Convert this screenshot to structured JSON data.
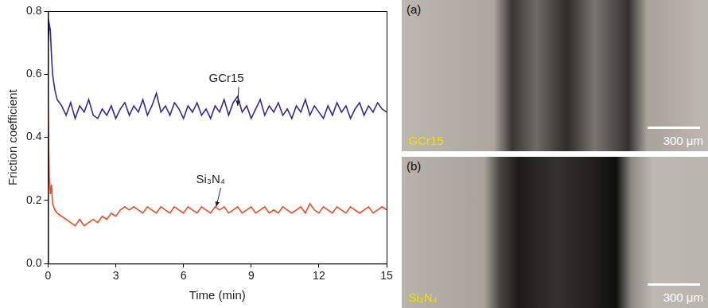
{
  "chart_data": {
    "type": "line",
    "x_label": "Time (min)",
    "y_label": "Friction coefficient",
    "x": [
      0,
      0.05,
      0.1,
      0.15,
      0.2,
      0.3,
      0.4,
      0.6,
      0.8,
      1.0,
      1.2,
      1.4,
      1.6,
      1.8,
      2.0,
      2.2,
      2.4,
      2.6,
      2.8,
      3.0,
      3.2,
      3.4,
      3.6,
      3.8,
      4.0,
      4.2,
      4.4,
      4.6,
      4.8,
      5.0,
      5.2,
      5.4,
      5.6,
      5.8,
      6.0,
      6.2,
      6.4,
      6.6,
      6.8,
      7.0,
      7.2,
      7.4,
      7.6,
      7.8,
      8.0,
      8.2,
      8.4,
      8.6,
      8.8,
      9.0,
      9.2,
      9.4,
      9.6,
      9.8,
      10.0,
      10.2,
      10.4,
      10.6,
      10.8,
      11.0,
      11.2,
      11.4,
      11.6,
      11.8,
      12.0,
      12.2,
      12.4,
      12.6,
      12.8,
      13.0,
      13.2,
      13.4,
      13.6,
      13.8,
      14.0,
      14.2,
      14.4,
      14.6,
      14.8,
      15.0
    ],
    "series": [
      {
        "name": "GCr15",
        "color": "#332b9b",
        "values": [
          0.7,
          0.76,
          0.74,
          0.66,
          0.6,
          0.55,
          0.52,
          0.5,
          0.47,
          0.51,
          0.46,
          0.5,
          0.48,
          0.52,
          0.47,
          0.46,
          0.49,
          0.47,
          0.5,
          0.46,
          0.49,
          0.51,
          0.47,
          0.5,
          0.48,
          0.52,
          0.47,
          0.5,
          0.54,
          0.48,
          0.5,
          0.47,
          0.51,
          0.49,
          0.46,
          0.5,
          0.48,
          0.51,
          0.47,
          0.49,
          0.46,
          0.5,
          0.48,
          0.52,
          0.47,
          0.51,
          0.53,
          0.48,
          0.5,
          0.46,
          0.49,
          0.52,
          0.47,
          0.5,
          0.48,
          0.51,
          0.47,
          0.49,
          0.46,
          0.5,
          0.48,
          0.52,
          0.47,
          0.5,
          0.48,
          0.46,
          0.5,
          0.47,
          0.51,
          0.48,
          0.5,
          0.46,
          0.49,
          0.51,
          0.47,
          0.5,
          0.48,
          0.51,
          0.49,
          0.48
        ]
      },
      {
        "name": "Si₃N₄",
        "color": "#ec4a26",
        "values": [
          0.5,
          0.27,
          0.22,
          0.25,
          0.19,
          0.17,
          0.16,
          0.15,
          0.14,
          0.13,
          0.12,
          0.14,
          0.12,
          0.13,
          0.14,
          0.13,
          0.15,
          0.14,
          0.16,
          0.15,
          0.17,
          0.18,
          0.17,
          0.18,
          0.17,
          0.16,
          0.18,
          0.17,
          0.16,
          0.18,
          0.17,
          0.16,
          0.18,
          0.17,
          0.16,
          0.18,
          0.17,
          0.16,
          0.18,
          0.17,
          0.16,
          0.18,
          0.17,
          0.18,
          0.16,
          0.17,
          0.18,
          0.16,
          0.17,
          0.18,
          0.16,
          0.17,
          0.18,
          0.16,
          0.17,
          0.16,
          0.18,
          0.17,
          0.16,
          0.17,
          0.18,
          0.16,
          0.19,
          0.17,
          0.16,
          0.18,
          0.17,
          0.16,
          0.18,
          0.17,
          0.16,
          0.18,
          0.17,
          0.16,
          0.17,
          0.18,
          0.16,
          0.17,
          0.18,
          0.17
        ]
      }
    ],
    "xlim": [
      0,
      15
    ],
    "xticks": [
      0,
      3,
      6,
      9,
      12,
      15
    ],
    "ylim": [
      0,
      0.8
    ],
    "yticks": [
      {
        "value": 0,
        "label": "0.0"
      },
      0.2,
      0.4,
      0.6,
      0.8
    ],
    "grid": false,
    "annotations": [
      {
        "text": "GCr15",
        "x": 7.9,
        "y": 0.585,
        "arrow_to": [
          8.4,
          0.5
        ]
      },
      {
        "text": "Si₃N₄",
        "x": 7.2,
        "y": 0.265,
        "arrow_to": [
          7.45,
          0.18
        ]
      }
    ]
  },
  "images": [
    {
      "label": "(a)",
      "caption": "GCr15",
      "scale_bar": "300 μm"
    },
    {
      "label": "(b)",
      "caption": "Si₃N₄",
      "scale_bar": "300 μm"
    }
  ]
}
